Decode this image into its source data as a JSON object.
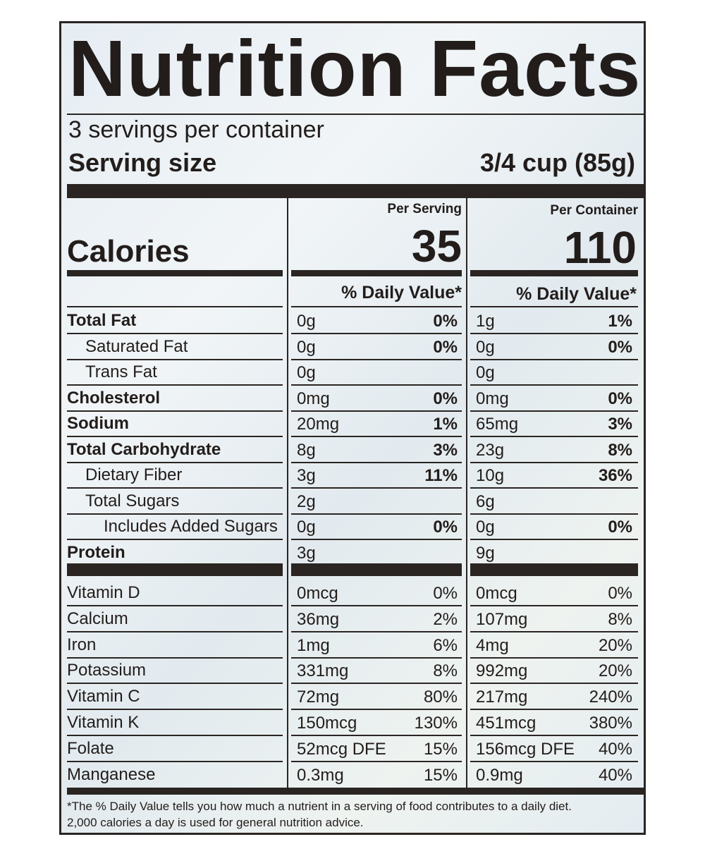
{
  "title": "Nutrition Facts",
  "servings_per_container": "3 servings per container",
  "serving_size_label": "Serving size",
  "serving_size_value": "3/4 cup (85g)",
  "col_per_serving": "Per Serving",
  "col_per_container": "Per Container",
  "calories_label": "Calories",
  "calories_per_serving": "35",
  "calories_per_container": "110",
  "daily_value_header": "% Daily Value*",
  "nutrients": [
    {
      "name": "Total Fat",
      "bold": true,
      "indent": 0,
      "s_amt": "0g",
      "s_dv": "0%",
      "c_amt": "1g",
      "c_dv": "1%"
    },
    {
      "name": "Saturated Fat",
      "bold": false,
      "indent": 1,
      "s_amt": "0g",
      "s_dv": "0%",
      "c_amt": "0g",
      "c_dv": "0%"
    },
    {
      "name": "Trans Fat",
      "bold": false,
      "indent": 1,
      "s_amt": "0g",
      "s_dv": "",
      "c_amt": "0g",
      "c_dv": ""
    },
    {
      "name": "Cholesterol",
      "bold": true,
      "indent": 0,
      "s_amt": "0mg",
      "s_dv": "0%",
      "c_amt": "0mg",
      "c_dv": "0%"
    },
    {
      "name": "Sodium",
      "bold": true,
      "indent": 0,
      "s_amt": "20mg",
      "s_dv": "1%",
      "c_amt": "65mg",
      "c_dv": "3%"
    },
    {
      "name": "Total Carbohydrate",
      "bold": true,
      "indent": 0,
      "s_amt": "8g",
      "s_dv": "3%",
      "c_amt": "23g",
      "c_dv": "8%"
    },
    {
      "name": "Dietary Fiber",
      "bold": false,
      "indent": 1,
      "s_amt": "3g",
      "s_dv": "11%",
      "c_amt": "10g",
      "c_dv": "36%"
    },
    {
      "name": "Total Sugars",
      "bold": false,
      "indent": 1,
      "s_amt": "2g",
      "s_dv": "",
      "c_amt": "6g",
      "c_dv": ""
    },
    {
      "name": "Includes Added Sugars",
      "bold": false,
      "indent": 2,
      "s_amt": "0g",
      "s_dv": "0%",
      "c_amt": "0g",
      "c_dv": "0%"
    },
    {
      "name": "Protein",
      "bold": true,
      "indent": 0,
      "s_amt": "3g",
      "s_dv": "",
      "c_amt": "9g",
      "c_dv": ""
    }
  ],
  "vitamins": [
    {
      "name": "Vitamin D",
      "s_amt": "0mcg",
      "s_dv": "0%",
      "c_amt": "0mcg",
      "c_dv": "0%"
    },
    {
      "name": "Calcium",
      "s_amt": "36mg",
      "s_dv": "2%",
      "c_amt": "107mg",
      "c_dv": "8%"
    },
    {
      "name": "Iron",
      "s_amt": "1mg",
      "s_dv": "6%",
      "c_amt": "4mg",
      "c_dv": "20%"
    },
    {
      "name": "Potassium",
      "s_amt": "331mg",
      "s_dv": "8%",
      "c_amt": "992mg",
      "c_dv": "20%"
    },
    {
      "name": "Vitamin C",
      "s_amt": "72mg",
      "s_dv": "80%",
      "c_amt": "217mg",
      "c_dv": "240%"
    },
    {
      "name": "Vitamin K",
      "s_amt": "150mcg",
      "s_dv": "130%",
      "c_amt": "451mcg",
      "c_dv": "380%"
    },
    {
      "name": "Folate",
      "s_amt": "52mcg DFE",
      "s_dv": "15%",
      "c_amt": "156mcg DFE",
      "c_dv": "40%"
    },
    {
      "name": "Manganese",
      "s_amt": "0.3mg",
      "s_dv": "15%",
      "c_amt": "0.9mg",
      "c_dv": "40%"
    }
  ],
  "footnote_line1": "*The % Daily Value tells you how much a nutrient in a serving of food contributes to a daily diet.",
  "footnote_line2": "2,000 calories a day is used for general nutrition advice."
}
